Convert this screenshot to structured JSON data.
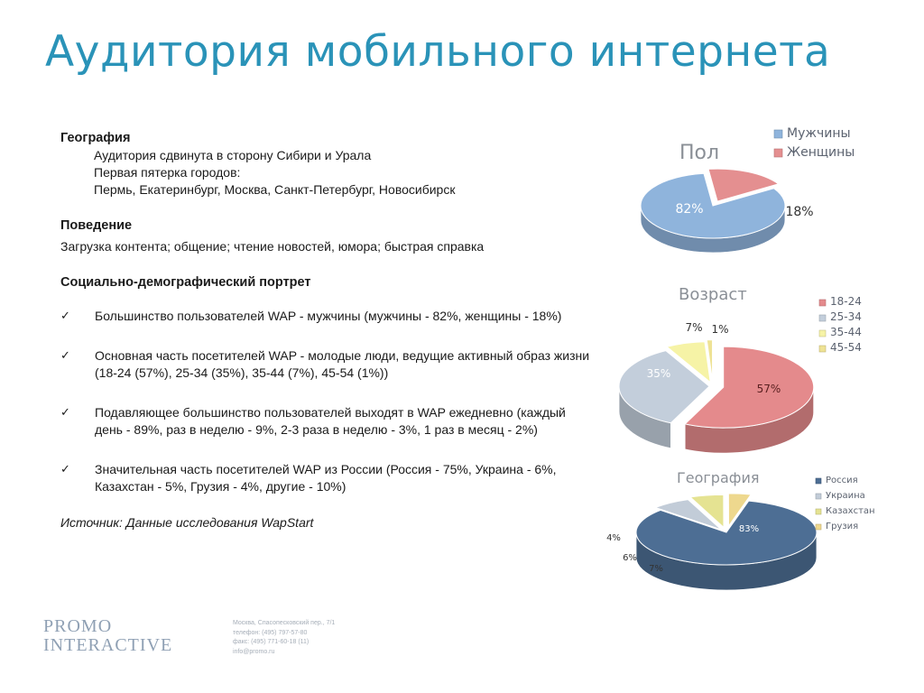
{
  "title": "Аудитория мобильного интернета",
  "geo": {
    "heading": "География",
    "lines": [
      "Аудитория сдвинута в сторону Сибири и Урала",
      "Первая пятерка городов:",
      "Пермь, Екатеринбург, Москва, Санкт-Петербург, Новосибирск"
    ]
  },
  "behavior": {
    "heading": "Поведение",
    "text": "Загрузка контента; общение; чтение новостей, юмора; быстрая справка"
  },
  "social": {
    "heading": "Социально-демографический портрет",
    "bullets": [
      "Большинство пользователей WAP - мужчины (мужчины - 82%, женщины - 18%)",
      "Основная часть посетителей WAP - молодые люди, ведущие активный образ жизни (18-24 (57%), 25-34 (35%), 35-44 (7%), 45-54 (1%))",
      "Подавляющее большинство пользователей выходят в WAP ежедневно (каждый день - 89%, раз в неделю - 9%, 2-3 раза в неделю - 3%, 1 раз в месяц - 2%)",
      "Значительная часть посетителей WAP из России (Россия - 75%, Украина - 6%, Казахстан - 5%, Грузия - 4%, другие - 10%)"
    ],
    "check_glyph": "✓"
  },
  "source": "Источник: Данные исследования WapStart",
  "logo": {
    "line1": "PROMO",
    "line2": "INTERACTIVE"
  },
  "contacts": [
    "Москва, Спасопесковский пер., 7/1",
    "телефон: (495) 797-57-80",
    "факс: (495) 771-60-18 (11)",
    "info@promo.ru"
  ],
  "chart_data": [
    {
      "type": "pie",
      "title": "Пол",
      "categories": [
        "Мужчины",
        "Женщины"
      ],
      "values": [
        82,
        18
      ],
      "labels": [
        "82%",
        "18%"
      ],
      "colors": [
        "#8fb4dc",
        "#e48f90"
      ],
      "legend": "top-right"
    },
    {
      "type": "pie",
      "title": "Возраст",
      "categories": [
        "18-24",
        "25-34",
        "35-44",
        "45-54"
      ],
      "values": [
        57,
        35,
        7,
        1
      ],
      "labels": [
        "57%",
        "35%",
        "7%",
        "1%"
      ],
      "colors": [
        "#e48a8c",
        "#c3cedb",
        "#f6f3a6",
        "#eee294"
      ],
      "legend": "right"
    },
    {
      "type": "pie",
      "title": "География",
      "categories": [
        "Россия",
        "Украина",
        "Казахстан",
        "Грузия"
      ],
      "values": [
        83,
        7,
        6,
        4
      ],
      "labels": [
        "83%",
        "7%",
        "6%",
        "4%"
      ],
      "colors": [
        "#4d6e94",
        "#c2ccd8",
        "#e5e392",
        "#eed88e"
      ],
      "legend": "right"
    }
  ]
}
